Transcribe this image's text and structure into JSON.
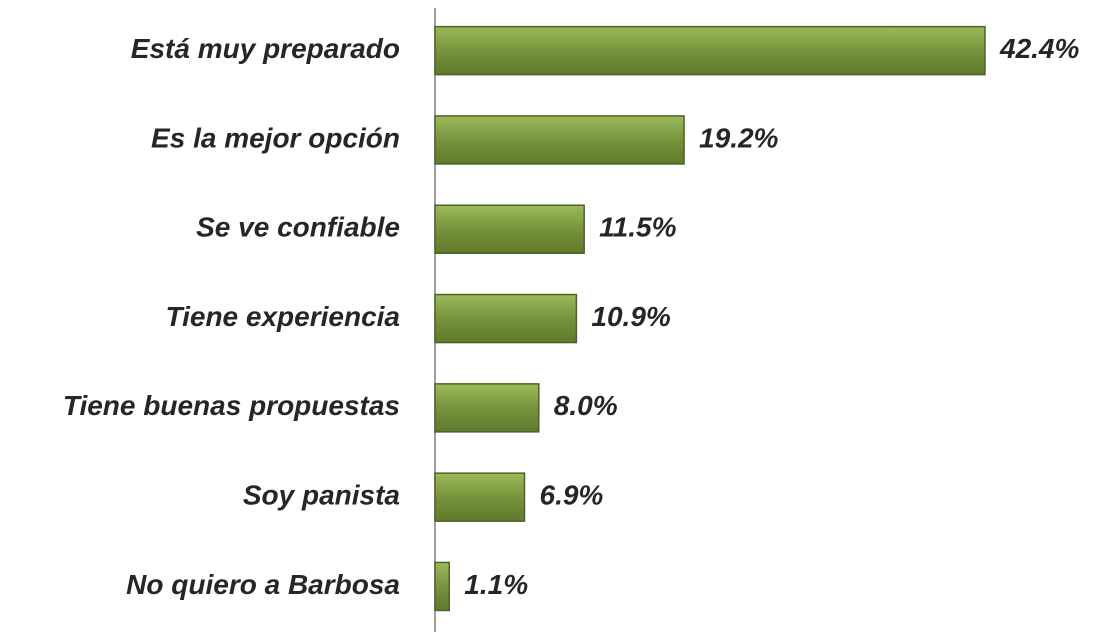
{
  "chart_data": {
    "type": "hbar",
    "categories": [
      "Está muy preparado",
      "Es la mejor opción",
      "Se ve confiable",
      "Tiene experiencia",
      "Tiene buenas propuestas",
      "Soy panista",
      "No quiero a Barbosa"
    ],
    "values": [
      42.4,
      19.2,
      11.5,
      10.9,
      8.0,
      6.9,
      1.1
    ],
    "value_labels": [
      "42.4%",
      "19.2%",
      "11.5%",
      "10.9%",
      "8.0%",
      "6.9%",
      "1.1%"
    ],
    "color": "#77933c"
  }
}
